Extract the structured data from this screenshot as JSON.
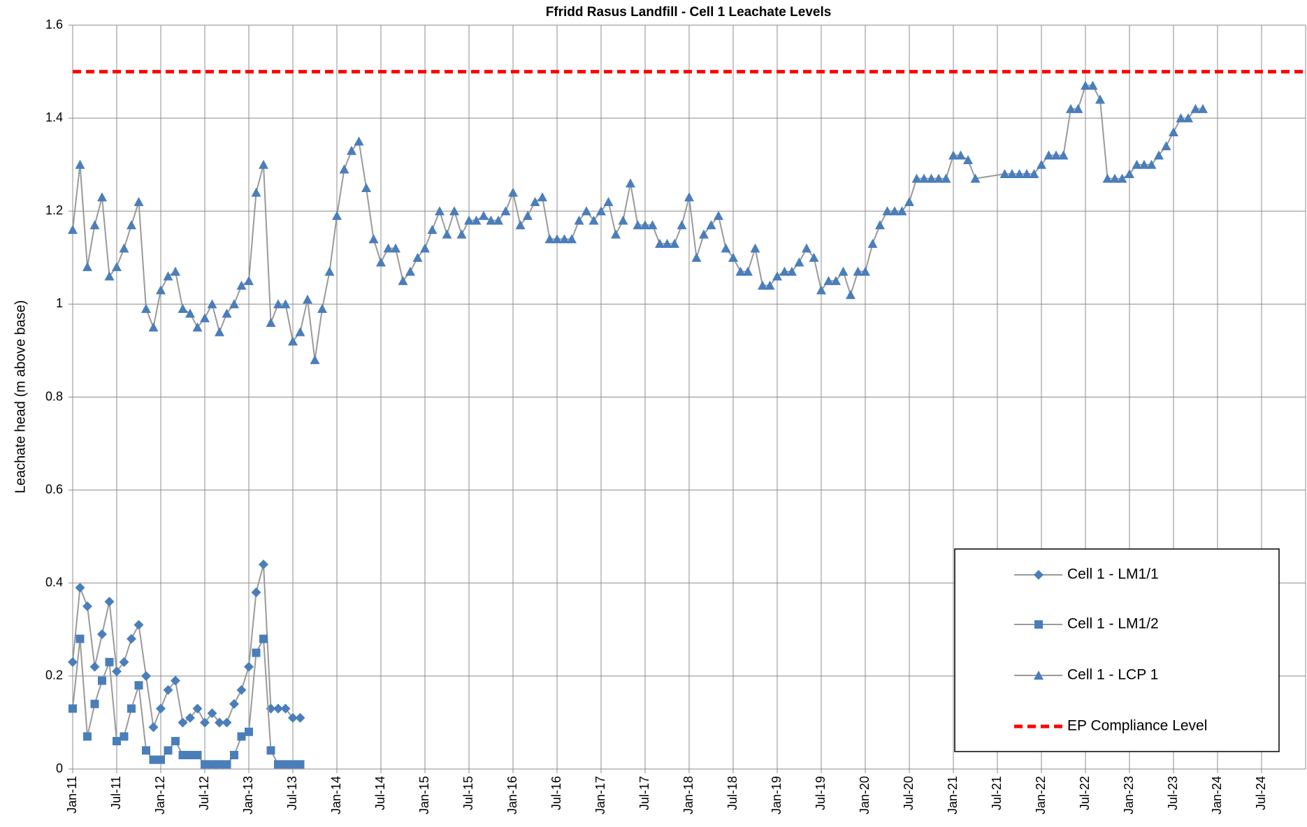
{
  "chart_data": {
    "type": "line",
    "title": "Ffridd Rasus Landfill - Cell 1 Leachate Levels",
    "y_label": "Leachate head (m above base)",
    "xlim": [
      "2011-01",
      "2025-01"
    ],
    "xticks": [
      {
        "value": "2011-01",
        "label": "Jan-11"
      },
      {
        "value": "2011-07",
        "label": "Jul-11"
      },
      {
        "value": "2012-01",
        "label": "Jan-12"
      },
      {
        "value": "2012-07",
        "label": "Jul-12"
      },
      {
        "value": "2013-01",
        "label": "Jan-13"
      },
      {
        "value": "2013-07",
        "label": "Jul-13"
      },
      {
        "value": "2014-01",
        "label": "Jan-14"
      },
      {
        "value": "2014-07",
        "label": "Jul-14"
      },
      {
        "value": "2015-01",
        "label": "Jan-15"
      },
      {
        "value": "2015-07",
        "label": "Jul-15"
      },
      {
        "value": "2016-01",
        "label": "Jan-16"
      },
      {
        "value": "2016-07",
        "label": "Jul-16"
      },
      {
        "value": "2017-01",
        "label": "Jan-17"
      },
      {
        "value": "2017-07",
        "label": "Jul-17"
      },
      {
        "value": "2018-01",
        "label": "Jan-18"
      },
      {
        "value": "2018-07",
        "label": "Jul-18"
      },
      {
        "value": "2019-01",
        "label": "Jan-19"
      },
      {
        "value": "2019-07",
        "label": "Jul-19"
      },
      {
        "value": "2020-01",
        "label": "Jan-20"
      },
      {
        "value": "2020-07",
        "label": "Jul-20"
      },
      {
        "value": "2021-01",
        "label": "Jan-21"
      },
      {
        "value": "2021-07",
        "label": "Jul-21"
      },
      {
        "value": "2022-01",
        "label": "Jan-22"
      },
      {
        "value": "2022-07",
        "label": "Jul-22"
      },
      {
        "value": "2023-01",
        "label": "Jan-23"
      },
      {
        "value": "2023-07",
        "label": "Jul-23"
      },
      {
        "value": "2024-01",
        "label": "Jan-24"
      },
      {
        "value": "2024-07",
        "label": "Jul-24"
      }
    ],
    "ylim": [
      0,
      1.6
    ],
    "yticks": [
      0,
      0.2,
      0.4,
      0.6,
      0.8,
      1,
      1.2,
      1.4,
      1.6
    ],
    "grid": true,
    "series": [
      {
        "name": "Cell 1 - LM1/1",
        "marker": "diamond",
        "color": "#4a7ebb",
        "line_color": "#9a9a9a",
        "x": [
          "2011-01",
          "2011-02",
          "2011-03",
          "2011-04",
          "2011-05",
          "2011-06",
          "2011-07",
          "2011-08",
          "2011-09",
          "2011-10",
          "2011-11",
          "2011-12",
          "2012-01",
          "2012-02",
          "2012-03",
          "2012-04",
          "2012-05",
          "2012-06",
          "2012-07",
          "2012-08",
          "2012-09",
          "2012-10",
          "2012-11",
          "2012-12",
          "2013-01",
          "2013-02",
          "2013-03",
          "2013-04",
          "2013-05",
          "2013-06",
          "2013-07",
          "2013-08"
        ],
        "values": [
          0.23,
          0.39,
          0.35,
          0.22,
          0.29,
          0.36,
          0.21,
          0.23,
          0.28,
          0.31,
          0.2,
          0.09,
          0.13,
          0.17,
          0.19,
          0.1,
          0.11,
          0.13,
          0.1,
          0.12,
          0.1,
          0.1,
          0.14,
          0.17,
          0.22,
          0.38,
          0.44,
          0.13,
          0.13,
          0.13,
          0.11,
          0.11
        ]
      },
      {
        "name": "Cell 1 - LM1/2",
        "marker": "square",
        "color": "#4a7ebb",
        "line_color": "#9a9a9a",
        "x": [
          "2011-01",
          "2011-02",
          "2011-03",
          "2011-04",
          "2011-05",
          "2011-06",
          "2011-07",
          "2011-08",
          "2011-09",
          "2011-10",
          "2011-11",
          "2011-12",
          "2012-01",
          "2012-02",
          "2012-03",
          "2012-04",
          "2012-05",
          "2012-06",
          "2012-07",
          "2012-08",
          "2012-09",
          "2012-10",
          "2012-11",
          "2012-12",
          "2013-01",
          "2013-02",
          "2013-03",
          "2013-04",
          "2013-05",
          "2013-06",
          "2013-07",
          "2013-08"
        ],
        "values": [
          0.13,
          0.28,
          0.07,
          0.14,
          0.19,
          0.23,
          0.06,
          0.07,
          0.13,
          0.18,
          0.04,
          0.02,
          0.02,
          0.04,
          0.06,
          0.03,
          0.03,
          0.03,
          0.01,
          0.01,
          0.01,
          0.01,
          0.03,
          0.07,
          0.08,
          0.25,
          0.28,
          0.04,
          0.01,
          0.01,
          0.01,
          0.01
        ]
      },
      {
        "name": "Cell 1 - LCP 1",
        "marker": "triangle",
        "color": "#4a7ebb",
        "line_color": "#9a9a9a",
        "x": [
          "2011-01",
          "2011-02",
          "2011-03",
          "2011-04",
          "2011-05",
          "2011-06",
          "2011-07",
          "2011-08",
          "2011-09",
          "2011-10",
          "2011-11",
          "2011-12",
          "2012-01",
          "2012-02",
          "2012-03",
          "2012-04",
          "2012-05",
          "2012-06",
          "2012-07",
          "2012-08",
          "2012-09",
          "2012-10",
          "2012-11",
          "2012-12",
          "2013-01",
          "2013-02",
          "2013-03",
          "2013-04",
          "2013-05",
          "2013-06",
          "2013-07",
          "2013-08",
          "2013-09",
          "2013-10",
          "2013-11",
          "2013-12",
          "2014-01",
          "2014-02",
          "2014-03",
          "2014-04",
          "2014-05",
          "2014-06",
          "2014-07",
          "2014-08",
          "2014-09",
          "2014-10",
          "2014-11",
          "2014-12",
          "2015-01",
          "2015-02",
          "2015-03",
          "2015-04",
          "2015-05",
          "2015-06",
          "2015-07",
          "2015-08",
          "2015-09",
          "2015-10",
          "2015-11",
          "2015-12",
          "2016-01",
          "2016-02",
          "2016-03",
          "2016-04",
          "2016-05",
          "2016-06",
          "2016-07",
          "2016-08",
          "2016-09",
          "2016-10",
          "2016-11",
          "2016-12",
          "2017-01",
          "2017-02",
          "2017-03",
          "2017-04",
          "2017-05",
          "2017-06",
          "2017-07",
          "2017-08",
          "2017-09",
          "2017-10",
          "2017-11",
          "2017-12",
          "2018-01",
          "2018-02",
          "2018-03",
          "2018-04",
          "2018-05",
          "2018-06",
          "2018-07",
          "2018-08",
          "2018-09",
          "2018-10",
          "2018-11",
          "2018-12",
          "2019-01",
          "2019-02",
          "2019-03",
          "2019-04",
          "2019-05",
          "2019-06",
          "2019-07",
          "2019-08",
          "2019-09",
          "2019-10",
          "2019-11",
          "2019-12",
          "2020-01",
          "2020-02",
          "2020-03",
          "2020-04",
          "2020-05",
          "2020-06",
          "2020-07",
          "2020-08",
          "2020-09",
          "2020-10",
          "2020-11",
          "2020-12",
          "2021-01",
          "2021-02",
          "2021-03",
          "2021-04",
          "2021-08",
          "2021-09",
          "2021-10",
          "2021-11",
          "2021-12",
          "2022-01",
          "2022-02",
          "2022-03",
          "2022-04",
          "2022-05",
          "2022-06",
          "2022-07",
          "2022-08",
          "2022-09",
          "2022-10",
          "2022-11",
          "2022-12",
          "2023-01",
          "2023-02",
          "2023-03",
          "2023-04",
          "2023-05",
          "2023-06",
          "2023-07",
          "2023-08",
          "2023-09",
          "2023-10",
          "2023-11"
        ],
        "values": [
          1.16,
          1.3,
          1.08,
          1.17,
          1.23,
          1.06,
          1.08,
          1.12,
          1.17,
          1.22,
          0.99,
          0.95,
          1.03,
          1.06,
          1.07,
          0.99,
          0.98,
          0.95,
          0.97,
          1,
          0.94,
          0.98,
          1,
          1.04,
          1.05,
          1.24,
          1.3,
          0.96,
          1,
          1,
          0.92,
          0.94,
          1.01,
          0.88,
          0.99,
          1.07,
          1.19,
          1.29,
          1.33,
          1.35,
          1.25,
          1.14,
          1.09,
          1.12,
          1.12,
          1.05,
          1.07,
          1.1,
          1.12,
          1.16,
          1.2,
          1.15,
          1.2,
          1.15,
          1.18,
          1.18,
          1.19,
          1.18,
          1.18,
          1.2,
          1.24,
          1.17,
          1.19,
          1.22,
          1.23,
          1.14,
          1.14,
          1.14,
          1.14,
          1.18,
          1.2,
          1.18,
          1.2,
          1.22,
          1.15,
          1.18,
          1.26,
          1.17,
          1.17,
          1.17,
          1.13,
          1.13,
          1.13,
          1.17,
          1.23,
          1.1,
          1.15,
          1.17,
          1.19,
          1.12,
          1.1,
          1.07,
          1.07,
          1.12,
          1.04,
          1.04,
          1.06,
          1.07,
          1.07,
          1.09,
          1.12,
          1.1,
          1.03,
          1.05,
          1.05,
          1.07,
          1.02,
          1.07,
          1.07,
          1.13,
          1.17,
          1.2,
          1.2,
          1.2,
          1.22,
          1.27,
          1.27,
          1.27,
          1.27,
          1.27,
          1.32,
          1.32,
          1.31,
          1.27,
          1.28,
          1.28,
          1.28,
          1.28,
          1.28,
          1.3,
          1.32,
          1.32,
          1.32,
          1.42,
          1.42,
          1.47,
          1.47,
          1.44,
          1.27,
          1.27,
          1.27,
          1.28,
          1.3,
          1.3,
          1.3,
          1.32,
          1.34,
          1.37,
          1.4,
          1.4,
          1.42,
          1.42
        ]
      }
    ],
    "reference_line": {
      "name": "EP Compliance Level",
      "value": 1.5,
      "color": "#ff0000"
    }
  }
}
